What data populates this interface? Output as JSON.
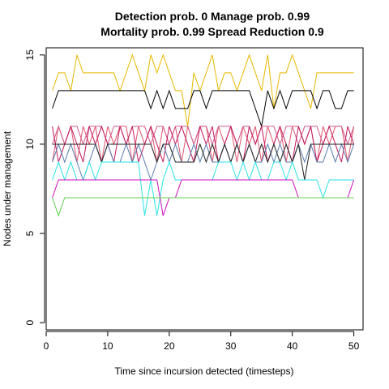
{
  "chart_data": {
    "type": "line",
    "title_lines": [
      "Detection prob. 0 Manage prob. 0.99",
      "Mortality prob. 0.99 Spread Reduction 0.9"
    ],
    "xlabel": "Time since incursion detected (timesteps)",
    "ylabel": "Nodes under management",
    "xlim": [
      0,
      51.5
    ],
    "ylim": [
      -0.4,
      15.4
    ],
    "xticks": [
      0,
      10,
      20,
      30,
      40,
      50
    ],
    "yticks": [
      0,
      5,
      10,
      15
    ],
    "grid": false,
    "legend": "none",
    "x": [
      1,
      2,
      3,
      4,
      5,
      6,
      7,
      8,
      9,
      10,
      11,
      12,
      13,
      14,
      15,
      16,
      17,
      18,
      19,
      20,
      21,
      22,
      23,
      24,
      25,
      26,
      27,
      28,
      29,
      30,
      31,
      32,
      33,
      34,
      35,
      36,
      37,
      38,
      39,
      40,
      41,
      42,
      43,
      44,
      45,
      46,
      47,
      48,
      49,
      50
    ],
    "series": [
      {
        "color": "#E6B800",
        "values": [
          13,
          14,
          14,
          13,
          15,
          14,
          14,
          14,
          14,
          14,
          14,
          13,
          14,
          15,
          14,
          13,
          15,
          14,
          15,
          14,
          13,
          13,
          11,
          14,
          13,
          14,
          15,
          13,
          14,
          14,
          13,
          14,
          15,
          14,
          13,
          15,
          12,
          14,
          14,
          15,
          14,
          13,
          12,
          14,
          14,
          14,
          14,
          14,
          14,
          14
        ]
      },
      {
        "color": "#000000",
        "values": [
          12,
          13,
          13,
          13,
          13,
          13,
          13,
          13,
          13,
          13,
          13,
          13,
          13,
          13,
          13,
          13,
          12,
          13,
          12,
          13,
          12,
          12,
          12,
          13,
          13,
          12,
          13,
          13,
          13,
          13,
          13,
          13,
          13,
          12,
          11,
          13,
          12,
          13,
          12,
          13,
          13,
          13,
          13,
          12,
          13,
          13,
          12,
          12,
          13,
          13
        ]
      },
      {
        "color": "#DF536B",
        "values": [
          9,
          11,
          10,
          11,
          9,
          11,
          10,
          11,
          9,
          11,
          10,
          11,
          11,
          9,
          11,
          10,
          11,
          9,
          11,
          10,
          11,
          9,
          11,
          10,
          11,
          11,
          9,
          11,
          10,
          11,
          9,
          11,
          10,
          11,
          9,
          11,
          10,
          11,
          9,
          11,
          11,
          10,
          11,
          9,
          11,
          10,
          11,
          11,
          9,
          11
        ]
      },
      {
        "color": "#D15C8F",
        "values": [
          10,
          11,
          10,
          11,
          11,
          10,
          11,
          11,
          11,
          10,
          11,
          11,
          10,
          11,
          11,
          11,
          10,
          11,
          11,
          10,
          11,
          11,
          11,
          10,
          11,
          11,
          10,
          11,
          11,
          11,
          10,
          11,
          11,
          10,
          11,
          11,
          11,
          10,
          11,
          11,
          10,
          11,
          11,
          11,
          10,
          11,
          11,
          11,
          10,
          11
        ]
      },
      {
        "color": "#C2185B",
        "values": [
          11,
          9,
          10,
          11,
          10,
          9,
          11,
          10,
          11,
          10,
          9,
          11,
          10,
          11,
          9,
          10,
          11,
          10,
          9,
          11,
          10,
          11,
          10,
          9,
          11,
          10,
          11,
          9,
          10,
          11,
          10,
          9,
          11,
          10,
          11,
          9,
          10,
          11,
          10,
          9,
          11,
          10,
          11,
          9,
          10,
          11,
          10,
          9,
          11,
          10
        ]
      },
      {
        "color": "#5B7FB0",
        "values": [
          9,
          10,
          9,
          10,
          9,
          8,
          9,
          10,
          9,
          10,
          9,
          9,
          10,
          9,
          10,
          9,
          8,
          9,
          10,
          9,
          10,
          9,
          9,
          10,
          9,
          10,
          9,
          9,
          10,
          9,
          10,
          9,
          10,
          9,
          9,
          10,
          9,
          10,
          9,
          9,
          10,
          9,
          10,
          9,
          9,
          10,
          9,
          10,
          9,
          10
        ]
      },
      {
        "color": "#222222",
        "values": [
          10,
          10,
          10,
          10,
          10,
          10,
          10,
          10,
          9,
          10,
          10,
          10,
          10,
          10,
          10,
          10,
          10,
          9,
          10,
          10,
          9,
          9,
          9,
          9,
          10,
          9,
          10,
          9,
          10,
          9,
          10,
          9,
          10,
          9,
          10,
          9,
          10,
          9,
          10,
          9,
          10,
          8,
          10,
          10,
          10,
          10,
          10,
          10,
          10,
          10
        ]
      },
      {
        "color": "#28E2E5",
        "values": [
          8,
          9,
          8,
          9,
          8,
          8,
          9,
          8,
          9,
          9,
          9,
          9,
          9,
          9,
          9,
          6,
          8,
          6,
          8,
          9,
          8,
          8,
          8,
          8,
          8,
          8,
          8,
          9,
          9,
          9,
          8,
          9,
          8,
          9,
          8,
          8,
          9,
          9,
          8,
          9,
          8,
          8,
          8,
          8,
          7,
          8,
          8,
          8,
          8,
          8
        ]
      },
      {
        "color": "#CD0BBC",
        "values": [
          7,
          8,
          8,
          8,
          8,
          8,
          8,
          8,
          8,
          8,
          8,
          8,
          8,
          8,
          8,
          8,
          8,
          8,
          6,
          7,
          7,
          8,
          8,
          8,
          8,
          8,
          8,
          8,
          8,
          8,
          8,
          8,
          8,
          8,
          8,
          8,
          8,
          8,
          8,
          8,
          7,
          7,
          7,
          7,
          7,
          7,
          7,
          7,
          7,
          8
        ]
      },
      {
        "color": "#61D04F",
        "values": [
          7,
          6,
          7,
          7,
          7,
          7,
          7,
          7,
          7,
          7,
          7,
          7,
          7,
          7,
          7,
          7,
          7,
          7,
          7,
          7,
          7,
          7,
          7,
          7,
          7,
          7,
          7,
          7,
          7,
          7,
          7,
          7,
          7,
          7,
          7,
          7,
          7,
          7,
          7,
          7,
          7,
          7,
          7,
          7,
          7,
          7,
          7,
          7,
          7,
          7
        ]
      }
    ]
  }
}
